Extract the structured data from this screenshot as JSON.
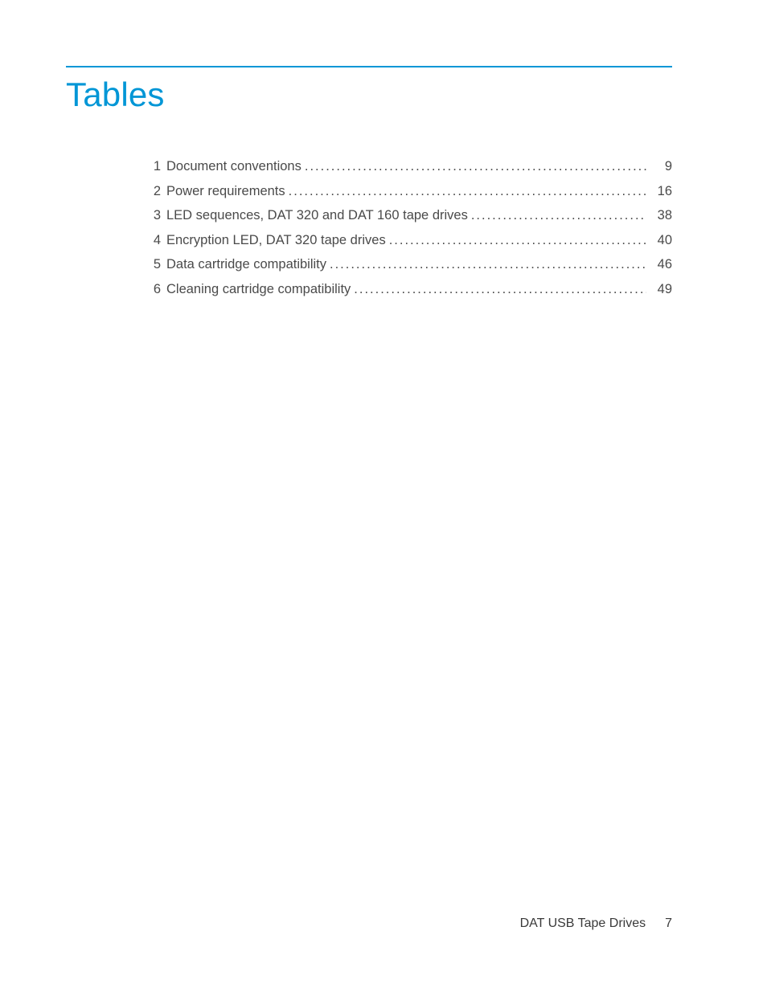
{
  "colors": {
    "rule": "#0096d6",
    "title": "#0096d6",
    "text": "#3a3a3a",
    "background": "#ffffff"
  },
  "title": "Tables",
  "title_fontsize": 42,
  "toc": {
    "items": [
      {
        "num": "1",
        "label": "Document conventions",
        "page": "9"
      },
      {
        "num": "2",
        "label": "Power requirements",
        "page": "16"
      },
      {
        "num": "3",
        "label": "LED sequences, DAT 320 and DAT 160 tape drives",
        "page": "38"
      },
      {
        "num": "4",
        "label": "Encryption LED, DAT 320 tape drives",
        "page": "40"
      },
      {
        "num": "5",
        "label": "Data cartridge compatibility",
        "page": "46"
      },
      {
        "num": "6",
        "label": "Cleaning cartridge compatibility",
        "page": "49"
      }
    ],
    "fontsize": 16.5,
    "line_height": 1.85
  },
  "footer": {
    "doc_title": "DAT USB Tape Drives",
    "page_number": "7"
  }
}
